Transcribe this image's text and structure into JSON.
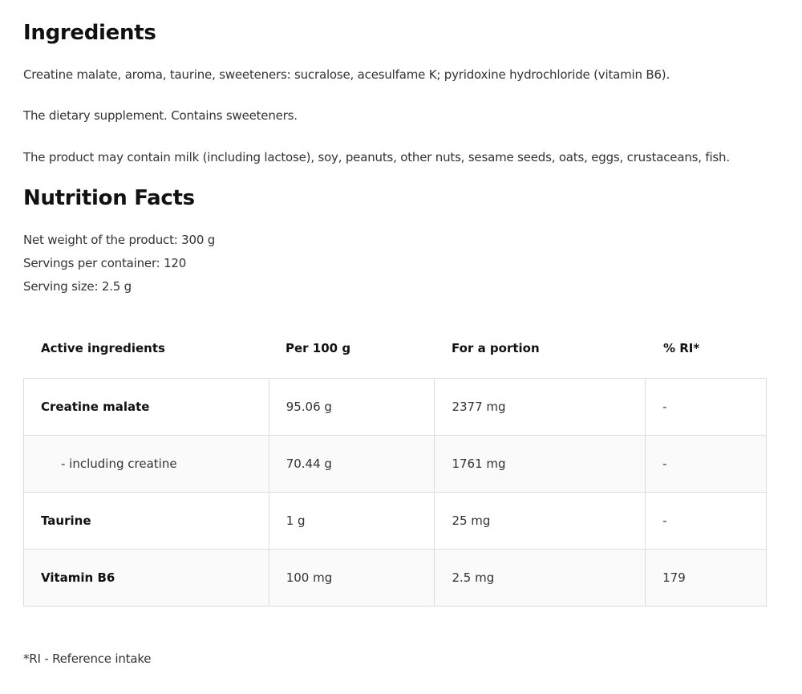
{
  "ingredients": {
    "title": "Ingredients",
    "paragraphs": [
      "Creatine malate, aroma, taurine, sweeteners: sucralose, acesulfame K; pyridoxine hydrochloride (vitamin B6).",
      "The dietary supplement. Contains sweeteners.",
      "The product may contain milk (including lactose), soy, peanuts, other nuts, sesame seeds, oats, eggs, crustaceans, fish."
    ]
  },
  "nutrition": {
    "title": "Nutrition Facts",
    "lines": [
      "Net weight of the product: 300 g",
      "Servings per container: 120",
      "Serving size: 2.5 g"
    ],
    "headers": [
      "Active ingredients",
      "Per 100 g",
      "For a portion",
      "% RI*"
    ],
    "rows": [
      {
        "name": "Creatine malate",
        "per100": "95.06 g",
        "portion": "2377 mg",
        "ri": "-"
      },
      {
        "name": "- including creatine",
        "per100": "70.44 g",
        "portion": "1761 mg",
        "ri": "-"
      },
      {
        "name": "Taurine",
        "per100": "1 g",
        "portion": "25 mg",
        "ri": "-"
      },
      {
        "name": "Vitamin B6",
        "per100": "100 mg",
        "portion": "2.5 mg",
        "ri": "179"
      }
    ],
    "footnote": "*RI - Reference intake"
  }
}
